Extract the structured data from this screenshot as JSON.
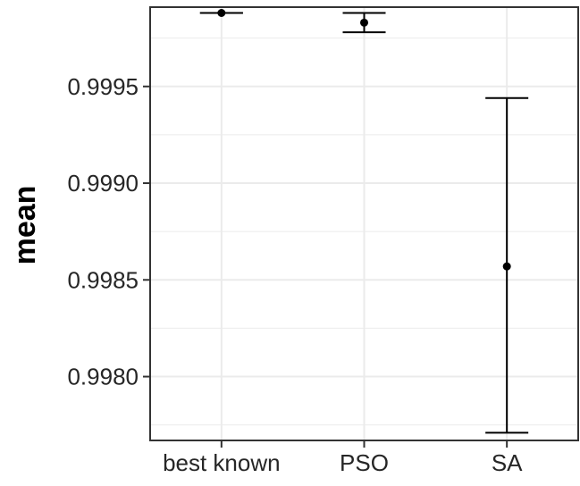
{
  "chart_data": {
    "type": "scatter",
    "title": "",
    "xlabel": "",
    "ylabel": "mean",
    "categories": [
      "best known",
      "PSO",
      "SA"
    ],
    "points": [
      {
        "category": "best known",
        "mean": 0.99988,
        "lower": 0.99988,
        "upper": 0.99988
      },
      {
        "category": "PSO",
        "mean": 0.99983,
        "lower": 0.99978,
        "upper": 0.99988
      },
      {
        "category": "SA",
        "mean": 0.99857,
        "lower": 0.99771,
        "upper": 0.99944
      }
    ],
    "ylim": [
      0.99767,
      0.99991
    ],
    "y_ticks": [
      {
        "value": 0.998,
        "label": "0.9980"
      },
      {
        "value": 0.9985,
        "label": "0.9985"
      },
      {
        "value": 0.999,
        "label": "0.9990"
      },
      {
        "value": 0.9995,
        "label": "0.9995"
      }
    ],
    "y_minor_ticks": [
      0.99775,
      0.99825,
      0.99875,
      0.99925,
      0.99975
    ],
    "grid": true,
    "legend": "none",
    "colors": {
      "point": "#000000",
      "errorbar": "#000000",
      "grid": "#ebebeb",
      "panel_border": "#333333",
      "background": "#ffffff"
    }
  }
}
